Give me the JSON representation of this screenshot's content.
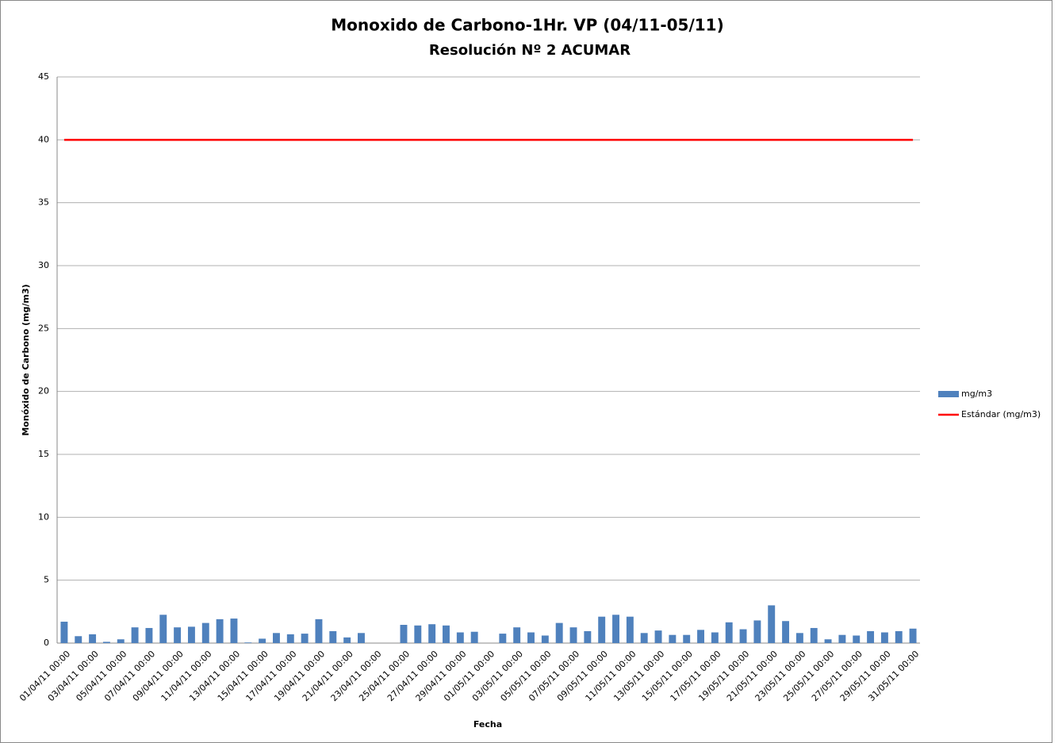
{
  "chart_data": {
    "type": "bar",
    "title": "Monoxido de Carbono-1Hr. VP (04/11-05/11)",
    "subtitle": "Resolución Nº 2 ACUMAR",
    "x_label": "Fecha",
    "y_label": "Monóxido de Carbono (mg/m3)",
    "categories": [
      "01/04/11 00:00",
      null,
      "03/04/11 00:00",
      null,
      "05/04/11 00:00",
      null,
      "07/04/11 00:00",
      null,
      "09/04/11 00:00",
      null,
      "11/04/11 00:00",
      null,
      "13/04/11 00:00",
      null,
      "15/04/11 00:00",
      null,
      "17/04/11 00:00",
      null,
      "19/04/11 00:00",
      null,
      "21/04/11 00:00",
      null,
      "23/04/11 00:00",
      null,
      "25/04/11 00:00",
      null,
      "27/04/11 00:00",
      null,
      "29/04/11 00:00",
      null,
      "01/05/11 00:00",
      null,
      "03/05/11 00:00",
      null,
      "05/05/11 00:00",
      null,
      "07/05/11 00:00",
      null,
      "09/05/11 00:00",
      null,
      "11/05/11 00:00",
      null,
      "13/05/11 00:00",
      null,
      "15/05/11 00:00",
      null,
      "17/05/11 00:00",
      null,
      "19/05/11 00:00",
      null,
      "21/05/11 00:00",
      null,
      "23/05/11 00:00",
      null,
      "25/05/11 00:00",
      null,
      "27/05/11 00:00",
      null,
      "29/05/11 00:00",
      null,
      "31/05/11 00:00"
    ],
    "series": [
      {
        "name": "mg/m3",
        "color": "#4f81bd",
        "kind": "bar",
        "values": [
          1.7,
          0.55,
          0.7,
          0.1,
          0.3,
          1.25,
          1.2,
          2.25,
          1.25,
          1.3,
          1.6,
          1.9,
          1.95,
          0.05,
          0.35,
          0.8,
          0.7,
          0.75,
          1.9,
          0.95,
          0.45,
          0.8,
          null,
          null,
          1.45,
          1.4,
          1.5,
          1.4,
          0.85,
          0.9,
          null,
          0.75,
          1.25,
          0.85,
          0.6,
          1.6,
          1.25,
          0.95,
          2.1,
          2.25,
          2.1,
          0.8,
          1.0,
          0.65,
          0.65,
          1.05,
          0.85,
          1.65,
          1.1,
          1.8,
          3.0,
          1.75,
          0.8,
          1.2,
          0.3,
          0.65,
          0.6,
          0.95,
          0.85,
          0.95,
          1.15
        ]
      },
      {
        "name": "Estándar (mg/m3)",
        "color": "#ff0000",
        "kind": "line",
        "values": [
          40,
          40,
          40,
          40,
          40,
          40,
          40,
          40,
          40,
          40,
          40,
          40,
          40,
          40,
          40,
          40,
          40,
          40,
          40,
          40,
          40,
          40,
          40,
          40,
          40,
          40,
          40,
          40,
          40,
          40,
          40,
          40,
          40,
          40,
          40,
          40,
          40,
          40,
          40,
          40,
          40,
          40,
          40,
          40,
          40,
          40,
          40,
          40,
          40,
          40,
          40,
          40,
          40,
          40,
          40,
          40,
          40,
          40,
          40,
          40,
          40
        ]
      }
    ],
    "ylim": [
      0,
      45
    ],
    "yticks": [
      0,
      5,
      10,
      15,
      20,
      25,
      30,
      35,
      40,
      45
    ],
    "grid": true,
    "legend": "right"
  }
}
